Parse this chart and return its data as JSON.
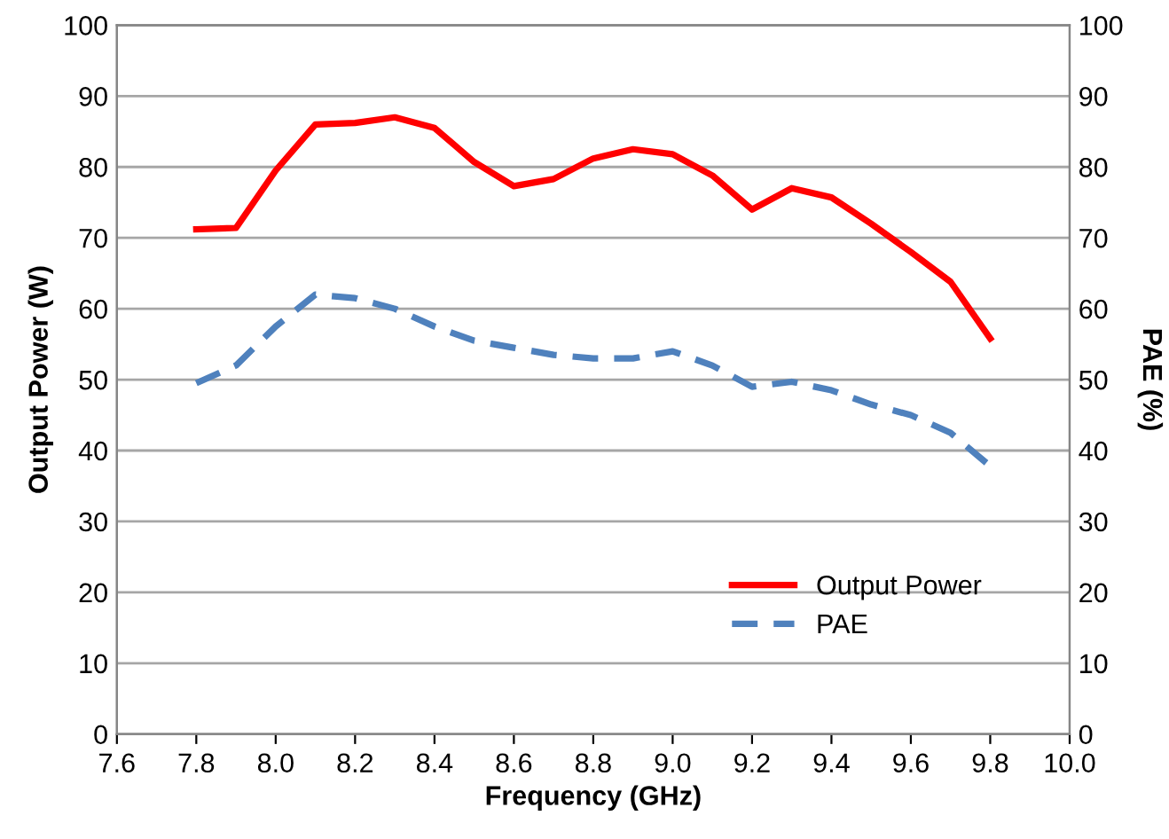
{
  "chart_data": {
    "type": "line",
    "xlabel": "Frequency (GHz)",
    "ylabel": "Output Power (W)",
    "y2label": "PAE (%)",
    "x": [
      7.8,
      7.9,
      8.0,
      8.1,
      8.2,
      8.3,
      8.4,
      8.5,
      8.6,
      8.7,
      8.8,
      8.9,
      9.0,
      9.1,
      9.2,
      9.3,
      9.4,
      9.5,
      9.6,
      9.7,
      9.8
    ],
    "series": [
      {
        "name": "Output Power",
        "color": "#ff0000",
        "line_style": "solid",
        "values": [
          71.2,
          71.4,
          79.5,
          86,
          86.2,
          87,
          85.5,
          80.7,
          77.3,
          78.3,
          81.2,
          82.5,
          81.8,
          78.8,
          74,
          77,
          75.7,
          72,
          68,
          63.8,
          55.8
        ]
      },
      {
        "name": "PAE",
        "color": "#4f81bd",
        "line_style": "dashed",
        "values": [
          49.5,
          52,
          57.5,
          62,
          61.5,
          60,
          57.5,
          55.5,
          54.5,
          53.5,
          53,
          53,
          54,
          52,
          49,
          49.7,
          48.5,
          46.5,
          45,
          42.5,
          37.8
        ]
      }
    ],
    "xlim": [
      7.6,
      10.0
    ],
    "xticks": [
      {
        "value": 7.6,
        "label": "7.6"
      },
      {
        "value": 7.8,
        "label": "7.8"
      },
      {
        "value": 8.0,
        "label": "8.0"
      },
      {
        "value": 8.2,
        "label": "8.2"
      },
      {
        "value": 8.4,
        "label": "8.4"
      },
      {
        "value": 8.6,
        "label": "8.6"
      },
      {
        "value": 8.8,
        "label": "8.8"
      },
      {
        "value": 9.0,
        "label": "9.0"
      },
      {
        "value": 9.2,
        "label": "9.2"
      },
      {
        "value": 9.4,
        "label": "9.4"
      },
      {
        "value": 9.6,
        "label": "9.6"
      },
      {
        "value": 9.8,
        "label": "9.8"
      },
      {
        "value": 10.0,
        "label": "10.0"
      }
    ],
    "ylim": [
      0,
      100
    ],
    "yticks": [
      0,
      10,
      20,
      30,
      40,
      50,
      60,
      70,
      80,
      90,
      100
    ],
    "y2lim": [
      0,
      100
    ],
    "y2ticks": [
      0,
      10,
      20,
      30,
      40,
      50,
      60,
      70,
      80,
      90,
      100
    ],
    "grid": "y",
    "legend": "bottom right",
    "marker": "none"
  }
}
